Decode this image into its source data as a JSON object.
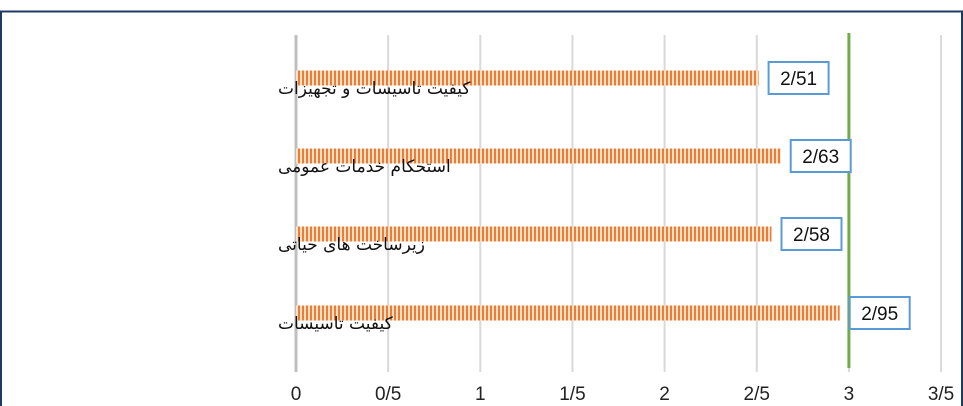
{
  "chart_data": {
    "type": "bar",
    "orientation": "horizontal",
    "categories": [
      "کیفیت تاسیسات و تجهیزات",
      "استحکام خدمات عمومی",
      "زیرساخت های حیاتی",
      "کیفیت تاسیسات"
    ],
    "values": [
      2.51,
      2.63,
      2.58,
      2.95
    ],
    "data_labels": [
      "2/51",
      "2/63",
      "2/58",
      "2/95"
    ],
    "x_ticks": [
      0,
      0.5,
      1,
      1.5,
      2,
      2.5,
      3,
      3.5
    ],
    "x_tick_labels": [
      "0",
      "0/5",
      "1",
      "1/5",
      "2",
      "2/5",
      "3",
      "3/5"
    ],
    "xlim": [
      0,
      3.5
    ],
    "reference_line": 3,
    "grid": "vertical",
    "colors": {
      "bar": "#ED7D31",
      "bar_stripe": "#FBE0CC",
      "reference_line": "#70AD47",
      "label_border": "#5B9BD5",
      "gridline": "#D9D9D9",
      "frame": "#1F3864"
    }
  }
}
